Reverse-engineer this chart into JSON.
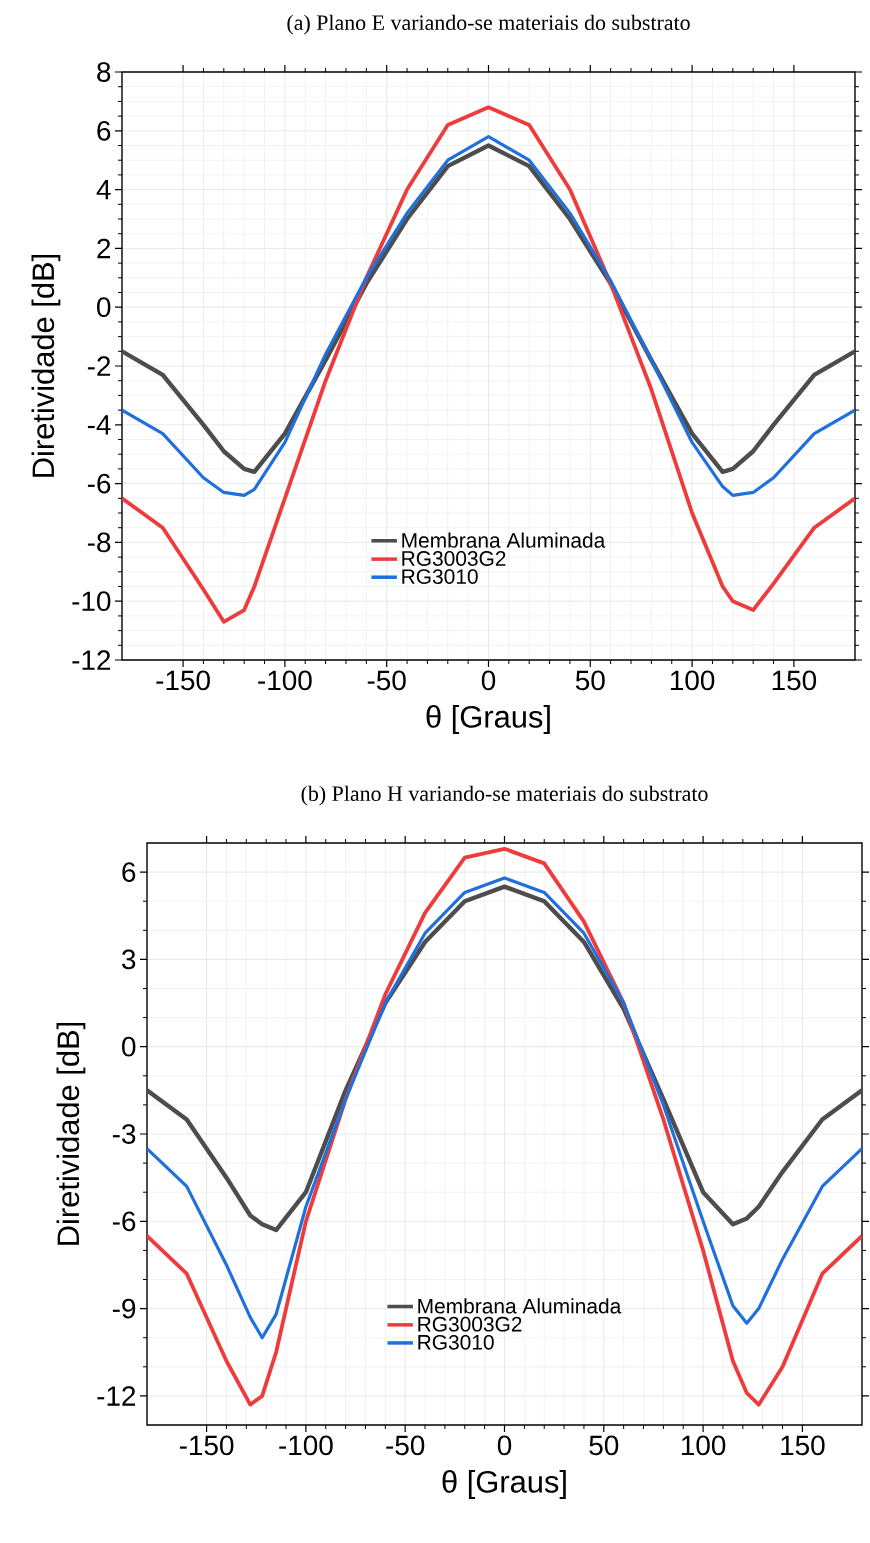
{
  "chart_data": [
    {
      "type": "line",
      "title": "(a) Plano E variando-se materiais do substrato",
      "xlabel": "θ [Graus]",
      "ylabel": "Diretividade [dB]",
      "xlim": [
        -180,
        180
      ],
      "ylim": [
        -12,
        8
      ],
      "xticks": [
        -150,
        -100,
        -50,
        0,
        50,
        100,
        150
      ],
      "yticks": [
        -12,
        -10,
        -8,
        -6,
        -4,
        -2,
        0,
        2,
        4,
        6,
        8
      ],
      "grid": true,
      "legend": "bottom",
      "marker": "none",
      "line_style": "solid",
      "x": [
        -180,
        -160,
        -140,
        -130,
        -120,
        -115,
        -100,
        -80,
        -60,
        -40,
        -20,
        0,
        20,
        40,
        60,
        80,
        100,
        115,
        120,
        130,
        140,
        160,
        180
      ],
      "series": [
        {
          "name": "Membrana Aluminada",
          "color": "#4d4d4d",
          "values": [
            -1.5,
            -2.3,
            -4.0,
            -4.9,
            -5.5,
            -5.6,
            -4.3,
            -1.8,
            0.8,
            3.0,
            4.8,
            5.5,
            4.8,
            3.0,
            0.8,
            -1.8,
            -4.3,
            -5.6,
            -5.5,
            -4.9,
            -4.0,
            -2.3,
            -1.5
          ]
        },
        {
          "name": "RG3003G2",
          "color": "#ee3b3b",
          "values": [
            -6.5,
            -7.5,
            -9.6,
            -10.7,
            -10.3,
            -9.5,
            -6.5,
            -2.5,
            1.0,
            4.0,
            6.2,
            6.8,
            6.2,
            4.0,
            0.8,
            -2.8,
            -7.0,
            -9.5,
            -10.0,
            -10.3,
            -9.4,
            -7.5,
            -6.5
          ]
        },
        {
          "name": "RG3010",
          "color": "#1f6fdd",
          "values": [
            -3.5,
            -4.3,
            -5.8,
            -6.3,
            -6.4,
            -6.2,
            -4.6,
            -1.6,
            1.0,
            3.2,
            5.0,
            5.8,
            5.0,
            3.2,
            0.9,
            -1.8,
            -4.6,
            -6.1,
            -6.4,
            -6.3,
            -5.8,
            -4.3,
            -3.5
          ]
        }
      ]
    },
    {
      "type": "line",
      "title": "(b) Plano H variando-se materiais do substrato",
      "xlabel": "θ [Graus]",
      "ylabel": "Diretividade [dB]",
      "xlim": [
        -180,
        180
      ],
      "ylim": [
        -13,
        7
      ],
      "xticks": [
        -150,
        -100,
        -50,
        0,
        50,
        100,
        150
      ],
      "yticks": [
        -12,
        -9,
        -6,
        -3,
        0,
        3,
        6
      ],
      "grid": true,
      "legend": "bottom",
      "marker": "none",
      "line_style": "solid",
      "x": [
        -180,
        -160,
        -140,
        -128,
        -122,
        -115,
        -100,
        -80,
        -60,
        -40,
        -20,
        0,
        20,
        40,
        60,
        80,
        100,
        115,
        122,
        128,
        140,
        160,
        180
      ],
      "series": [
        {
          "name": "Membrana Aluminada",
          "color": "#4d4d4d",
          "values": [
            -1.5,
            -2.5,
            -4.5,
            -5.8,
            -6.1,
            -6.3,
            -5.0,
            -1.5,
            1.5,
            3.6,
            5.0,
            5.5,
            5.0,
            3.6,
            1.3,
            -1.8,
            -5.0,
            -6.1,
            -5.9,
            -5.5,
            -4.3,
            -2.5,
            -1.5
          ]
        },
        {
          "name": "RG3003G2",
          "color": "#ee3b3b",
          "values": [
            -6.5,
            -7.8,
            -10.8,
            -12.3,
            -12.0,
            -10.5,
            -6.0,
            -1.8,
            1.8,
            4.6,
            6.5,
            6.8,
            6.3,
            4.3,
            1.5,
            -2.5,
            -7.0,
            -10.8,
            -11.9,
            -12.3,
            -11.0,
            -7.8,
            -6.5
          ]
        },
        {
          "name": "RG3010",
          "color": "#1f6fdd",
          "values": [
            -3.5,
            -4.8,
            -7.5,
            -9.3,
            -10.0,
            -9.2,
            -5.5,
            -1.8,
            1.5,
            3.9,
            5.3,
            5.8,
            5.3,
            3.9,
            1.5,
            -2.0,
            -6.0,
            -8.9,
            -9.5,
            -9.0,
            -7.3,
            -4.8,
            -3.5
          ]
        }
      ]
    }
  ]
}
